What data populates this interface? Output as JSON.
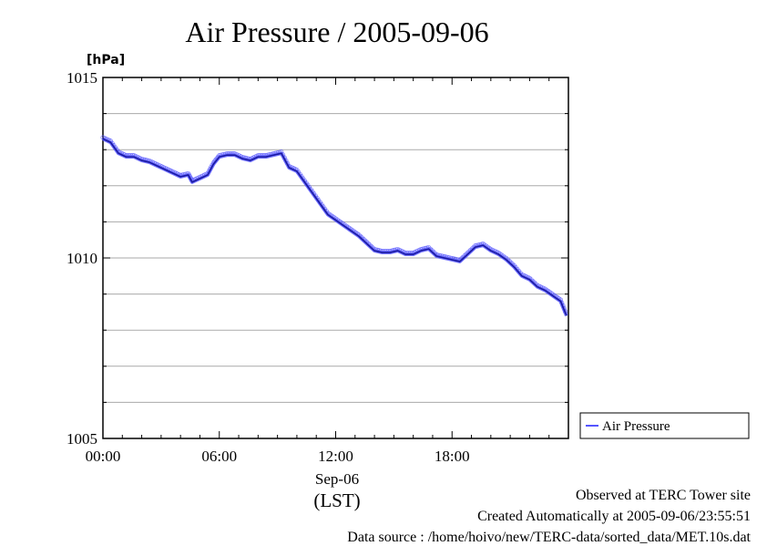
{
  "chart_data": {
    "type": "line",
    "title": "Air Pressure / 2005-09-06",
    "ylabel": "[hPa]",
    "ylim": [
      1005,
      1015
    ],
    "y_ticks": [
      {
        "value": 1005,
        "label": "1005"
      },
      {
        "value": 1010,
        "label": "1010"
      },
      {
        "value": 1015,
        "label": "1015"
      }
    ],
    "xlim": [
      0,
      24
    ],
    "x_ticks": [
      {
        "value": 0,
        "label": "00:00"
      },
      {
        "value": 6,
        "label": "06:00"
      },
      {
        "value": 12,
        "label": "12:00"
      },
      {
        "value": 18,
        "label": "18:00"
      }
    ],
    "x_date_label": "Sep-06",
    "x_unit_label": "(LST)",
    "grid": true,
    "legend_position": "right",
    "series": [
      {
        "name": "Air Pressure",
        "color": "#5555ff",
        "x": [
          0,
          0.4,
          0.8,
          1.2,
          1.6,
          2.0,
          2.4,
          2.8,
          3.2,
          3.6,
          4.0,
          4.4,
          4.6,
          5.0,
          5.4,
          5.7,
          6.0,
          6.4,
          6.8,
          7.2,
          7.6,
          8.0,
          8.4,
          8.8,
          9.2,
          9.6,
          10.0,
          10.4,
          10.8,
          11.2,
          11.6,
          12.0,
          12.4,
          12.8,
          13.2,
          13.6,
          14.0,
          14.4,
          14.8,
          15.2,
          15.6,
          16.0,
          16.4,
          16.8,
          17.2,
          17.6,
          18.0,
          18.4,
          18.8,
          19.2,
          19.6,
          20.0,
          20.4,
          20.8,
          21.2,
          21.6,
          22.0,
          22.4,
          22.8,
          23.2,
          23.6,
          23.9
        ],
        "y": [
          1013.3,
          1013.2,
          1012.9,
          1012.8,
          1012.8,
          1012.7,
          1012.65,
          1012.55,
          1012.45,
          1012.35,
          1012.25,
          1012.3,
          1012.1,
          1012.2,
          1012.3,
          1012.6,
          1012.8,
          1012.85,
          1012.85,
          1012.75,
          1012.7,
          1012.8,
          1012.8,
          1012.85,
          1012.9,
          1012.5,
          1012.4,
          1012.1,
          1011.8,
          1011.5,
          1011.2,
          1011.05,
          1010.9,
          1010.75,
          1010.6,
          1010.4,
          1010.2,
          1010.15,
          1010.15,
          1010.2,
          1010.1,
          1010.1,
          1010.2,
          1010.25,
          1010.05,
          1010.0,
          1009.95,
          1009.9,
          1010.1,
          1010.3,
          1010.35,
          1010.2,
          1010.1,
          1009.95,
          1009.75,
          1009.5,
          1009.4,
          1009.2,
          1009.1,
          1008.95,
          1008.8,
          1008.4
        ]
      }
    ]
  },
  "footer": {
    "line1": "Observed at TERC Tower site",
    "line2": "Created Automatically at 2005-09-06/23:55:51",
    "line3": "Data source : /home/hoivo/new/TERC-data/sorted_data/MET.10s.dat"
  }
}
